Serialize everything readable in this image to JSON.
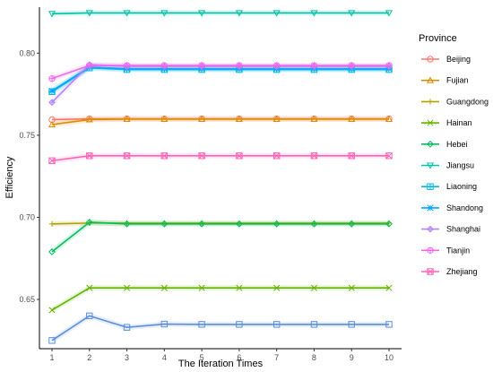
{
  "chart_data": {
    "type": "line",
    "title": "",
    "xlabel": "The Iteration Times",
    "ylabel": "Efficiency",
    "x": [
      1,
      2,
      3,
      4,
      5,
      6,
      7,
      8,
      9,
      10
    ],
    "xlim": [
      1,
      10
    ],
    "ylim": [
      0.62,
      0.828
    ],
    "yticks": [
      0.65,
      0.7,
      0.75,
      0.8
    ],
    "ytick_labels": [
      "0.65",
      "0.70",
      "0.75",
      "0.80"
    ],
    "xticks": [
      1,
      2,
      3,
      4,
      5,
      6,
      7,
      8,
      9,
      10
    ],
    "grid": false,
    "legend_title": "Province",
    "legend_position": "right",
    "series": [
      {
        "name": "Beijing",
        "color": "#F8766D",
        "marker": "circle",
        "values": [
          0.7595,
          0.76,
          0.76,
          0.76,
          0.76,
          0.76,
          0.76,
          0.76,
          0.76,
          0.76
        ]
      },
      {
        "name": "Fujian",
        "color": "#DB8E00",
        "marker": "triangle-up",
        "values": [
          0.7565,
          0.7595,
          0.7598,
          0.7598,
          0.7598,
          0.7598,
          0.7598,
          0.7598,
          0.7598,
          0.7598
        ]
      },
      {
        "name": "Guangdong",
        "color": "#AEA200",
        "marker": "plus",
        "values": [
          0.696,
          0.6965,
          0.6965,
          0.6965,
          0.6965,
          0.6965,
          0.6965,
          0.6965,
          0.6965,
          0.6965
        ]
      },
      {
        "name": "Hainan",
        "color": "#64B200",
        "marker": "cross",
        "values": [
          0.6435,
          0.657,
          0.657,
          0.657,
          0.657,
          0.657,
          0.657,
          0.657,
          0.657,
          0.657
        ]
      },
      {
        "name": "Hebei",
        "color": "#00BD5C",
        "marker": "diamond",
        "values": [
          0.679,
          0.697,
          0.696,
          0.696,
          0.696,
          0.696,
          0.696,
          0.696,
          0.696,
          0.696
        ]
      },
      {
        "name": "Jiangsu",
        "color": "#00C1A7",
        "marker": "triangle-down",
        "values": [
          0.824,
          0.8245,
          0.8245,
          0.8245,
          0.8245,
          0.8245,
          0.8245,
          0.8245,
          0.8245,
          0.8245
        ]
      },
      {
        "name": "Liaoning",
        "color": "#00BADE",
        "marker": "square-plus",
        "values": [
          0.7765,
          0.791,
          0.79,
          0.79,
          0.79,
          0.79,
          0.79,
          0.79,
          0.79,
          0.79
        ]
      },
      {
        "name": "Shandong",
        "color": "#00A6FF",
        "marker": "star",
        "values": [
          0.777,
          0.7915,
          0.7905,
          0.7905,
          0.7905,
          0.7905,
          0.7905,
          0.7905,
          0.7905,
          0.7905
        ]
      },
      {
        "name": "Shanghai",
        "color": "#B385FF",
        "marker": "diamond-plus",
        "values": [
          0.77,
          0.793,
          0.792,
          0.792,
          0.792,
          0.792,
          0.792,
          0.792,
          0.792,
          0.792
        ]
      },
      {
        "name": "Tianjin",
        "color": "#EF67EB",
        "marker": "circle-plus",
        "values": [
          0.7845,
          0.7925,
          0.7925,
          0.7925,
          0.7925,
          0.7925,
          0.7925,
          0.7925,
          0.7925,
          0.7925
        ]
      },
      {
        "name": "Zhejiang",
        "color": "#FF63B6",
        "marker": "square-cross",
        "values": [
          0.7345,
          0.7375,
          0.7375,
          0.7375,
          0.7375,
          0.7375,
          0.7375,
          0.7375,
          0.7375,
          0.7375
        ]
      },
      {
        "name": "",
        "color": "#5B8FD9",
        "marker": "square",
        "values": [
          0.625,
          0.64,
          0.633,
          0.635,
          0.6348,
          0.6348,
          0.6348,
          0.6348,
          0.6348,
          0.6348
        ]
      }
    ]
  }
}
